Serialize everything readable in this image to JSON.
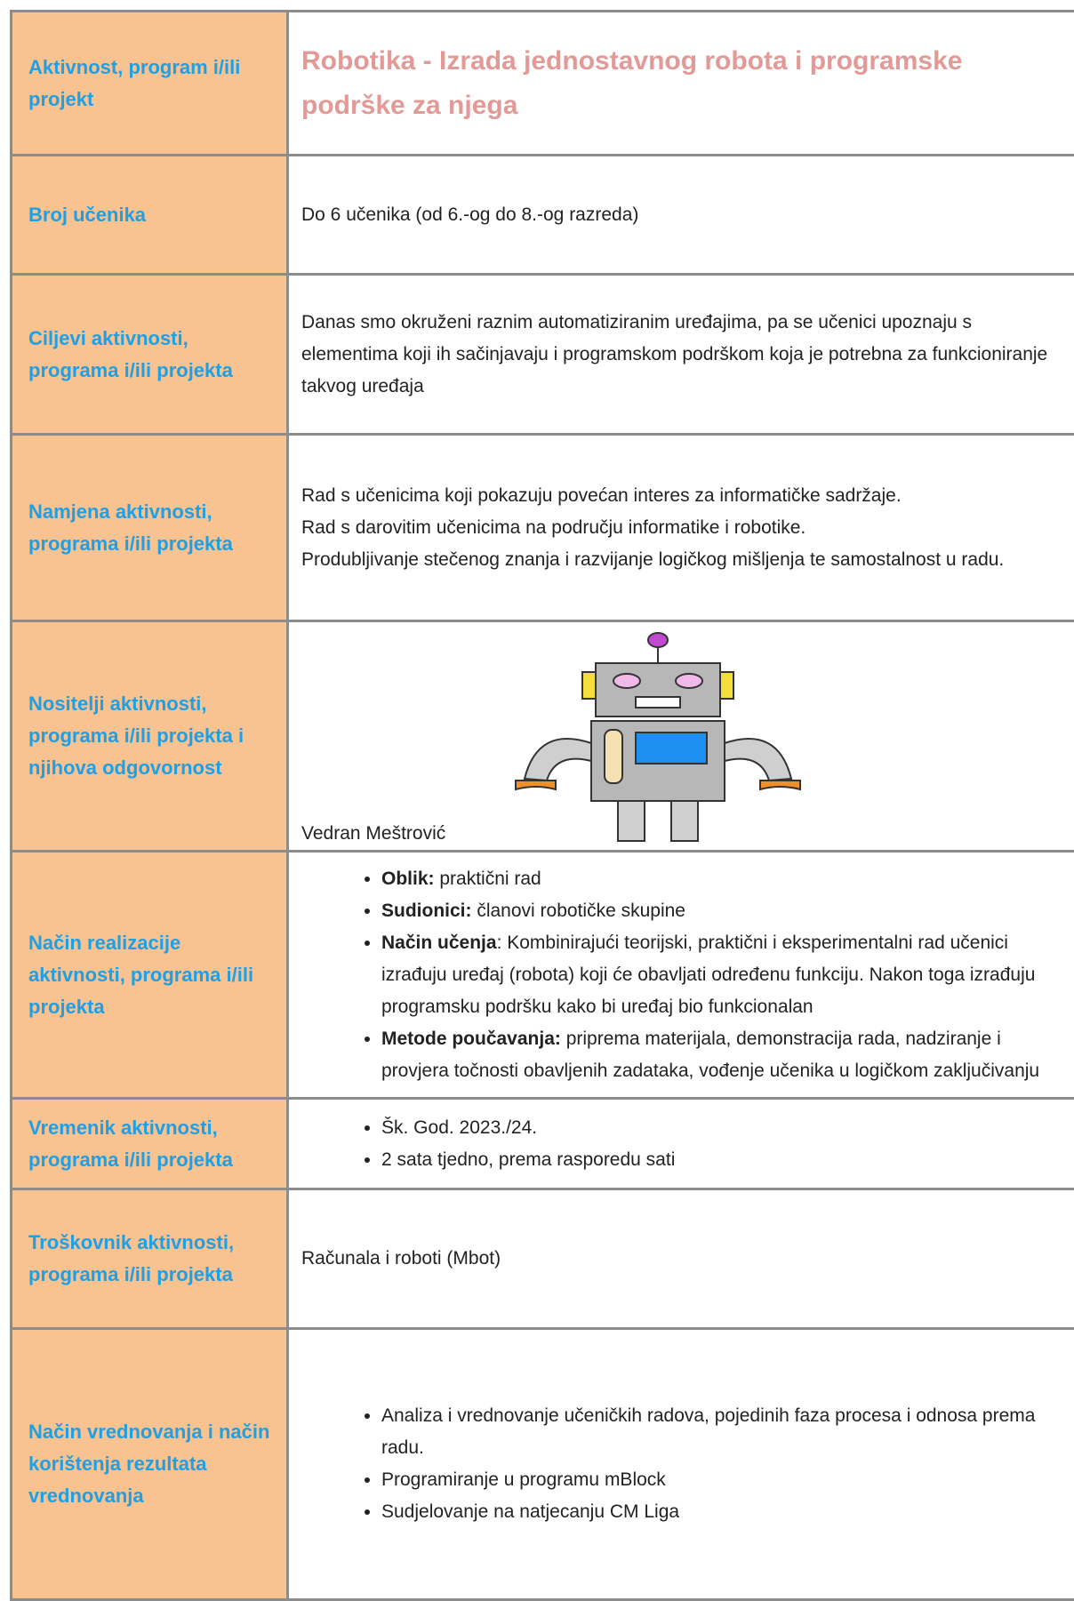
{
  "rows": [
    {
      "label": "Aktivnost, program i/ili projekt",
      "title": "Robotika - Izrada jednostavnog robota i programske podrške za njega"
    },
    {
      "label": "Broj učenika",
      "text": "Do 6 učenika (od 6.-og do 8.-og razreda)"
    },
    {
      "label": "Ciljevi aktivnosti, programa i/ili projekta",
      "text": "Danas smo okruženi raznim automatiziranim uređajima, pa se učenici upoznaju s elementima koji ih sačinjavaju i programskom podrškom koja je potrebna za funkcioniranje takvog uređaja"
    },
    {
      "label": "Namjena aktivnosti, programa i/ili projekta",
      "lines": [
        "Rad s učenicima koji pokazuju povećan interes za informatičke sadržaje.",
        "Rad s darovitim učenicima na području informatike i robotike.",
        "Produbljivanje stečenog znanja i razvijanje logičkog mišljenja te samostalnost u radu."
      ]
    },
    {
      "label": "Nositelji aktivnosti, programa i/ili projekta i njihova odgovornost",
      "person": "Vedran Meštrović"
    },
    {
      "label": "Način realizacije aktivnosti, programa i/ili projekta",
      "bullets": [
        {
          "bold": "Oblik:",
          "text": " praktični rad"
        },
        {
          "bold": "Sudionici:",
          "text": " članovi robotičke skupine"
        },
        {
          "bold": "Način učenja",
          "text": ": Kombinirajući teorijski, praktični i eksperimentalni rad učenici izrađuju uređaj (robota) koji će obavljati određenu funkciju. Nakon toga  izrađuju programsku podršku kako bi uređaj bio funkcionalan"
        },
        {
          "bold": "Metode poučavanja:",
          "text": " priprema materijala, demonstracija rada, nadziranje i provjera točnosti obavljenih zadataka, vođenje učenika u logičkom zaključivanju"
        }
      ]
    },
    {
      "label": "Vremenik aktivnosti, programa i/ili projekta",
      "bullets": [
        {
          "text": "Šk. God. 2023./24."
        },
        {
          "text": "2 sata tjedno, prema rasporedu sati"
        }
      ]
    },
    {
      "label": "Troškovnik aktivnosti, programa i/ili projekta",
      "text": "Računala i roboti (Mbot)"
    },
    {
      "label": "Način vrednovanja i način korištenja rezultata vrednovanja",
      "bullets": [
        {
          "text": "Analiza i vrednovanje učeničkih radova, pojedinih faza procesa i odnosa prema radu."
        },
        {
          "text": "Programiranje u programu mBlock"
        },
        {
          "text": "Sudjelovanje na natjecanju CM Liga"
        }
      ]
    }
  ]
}
